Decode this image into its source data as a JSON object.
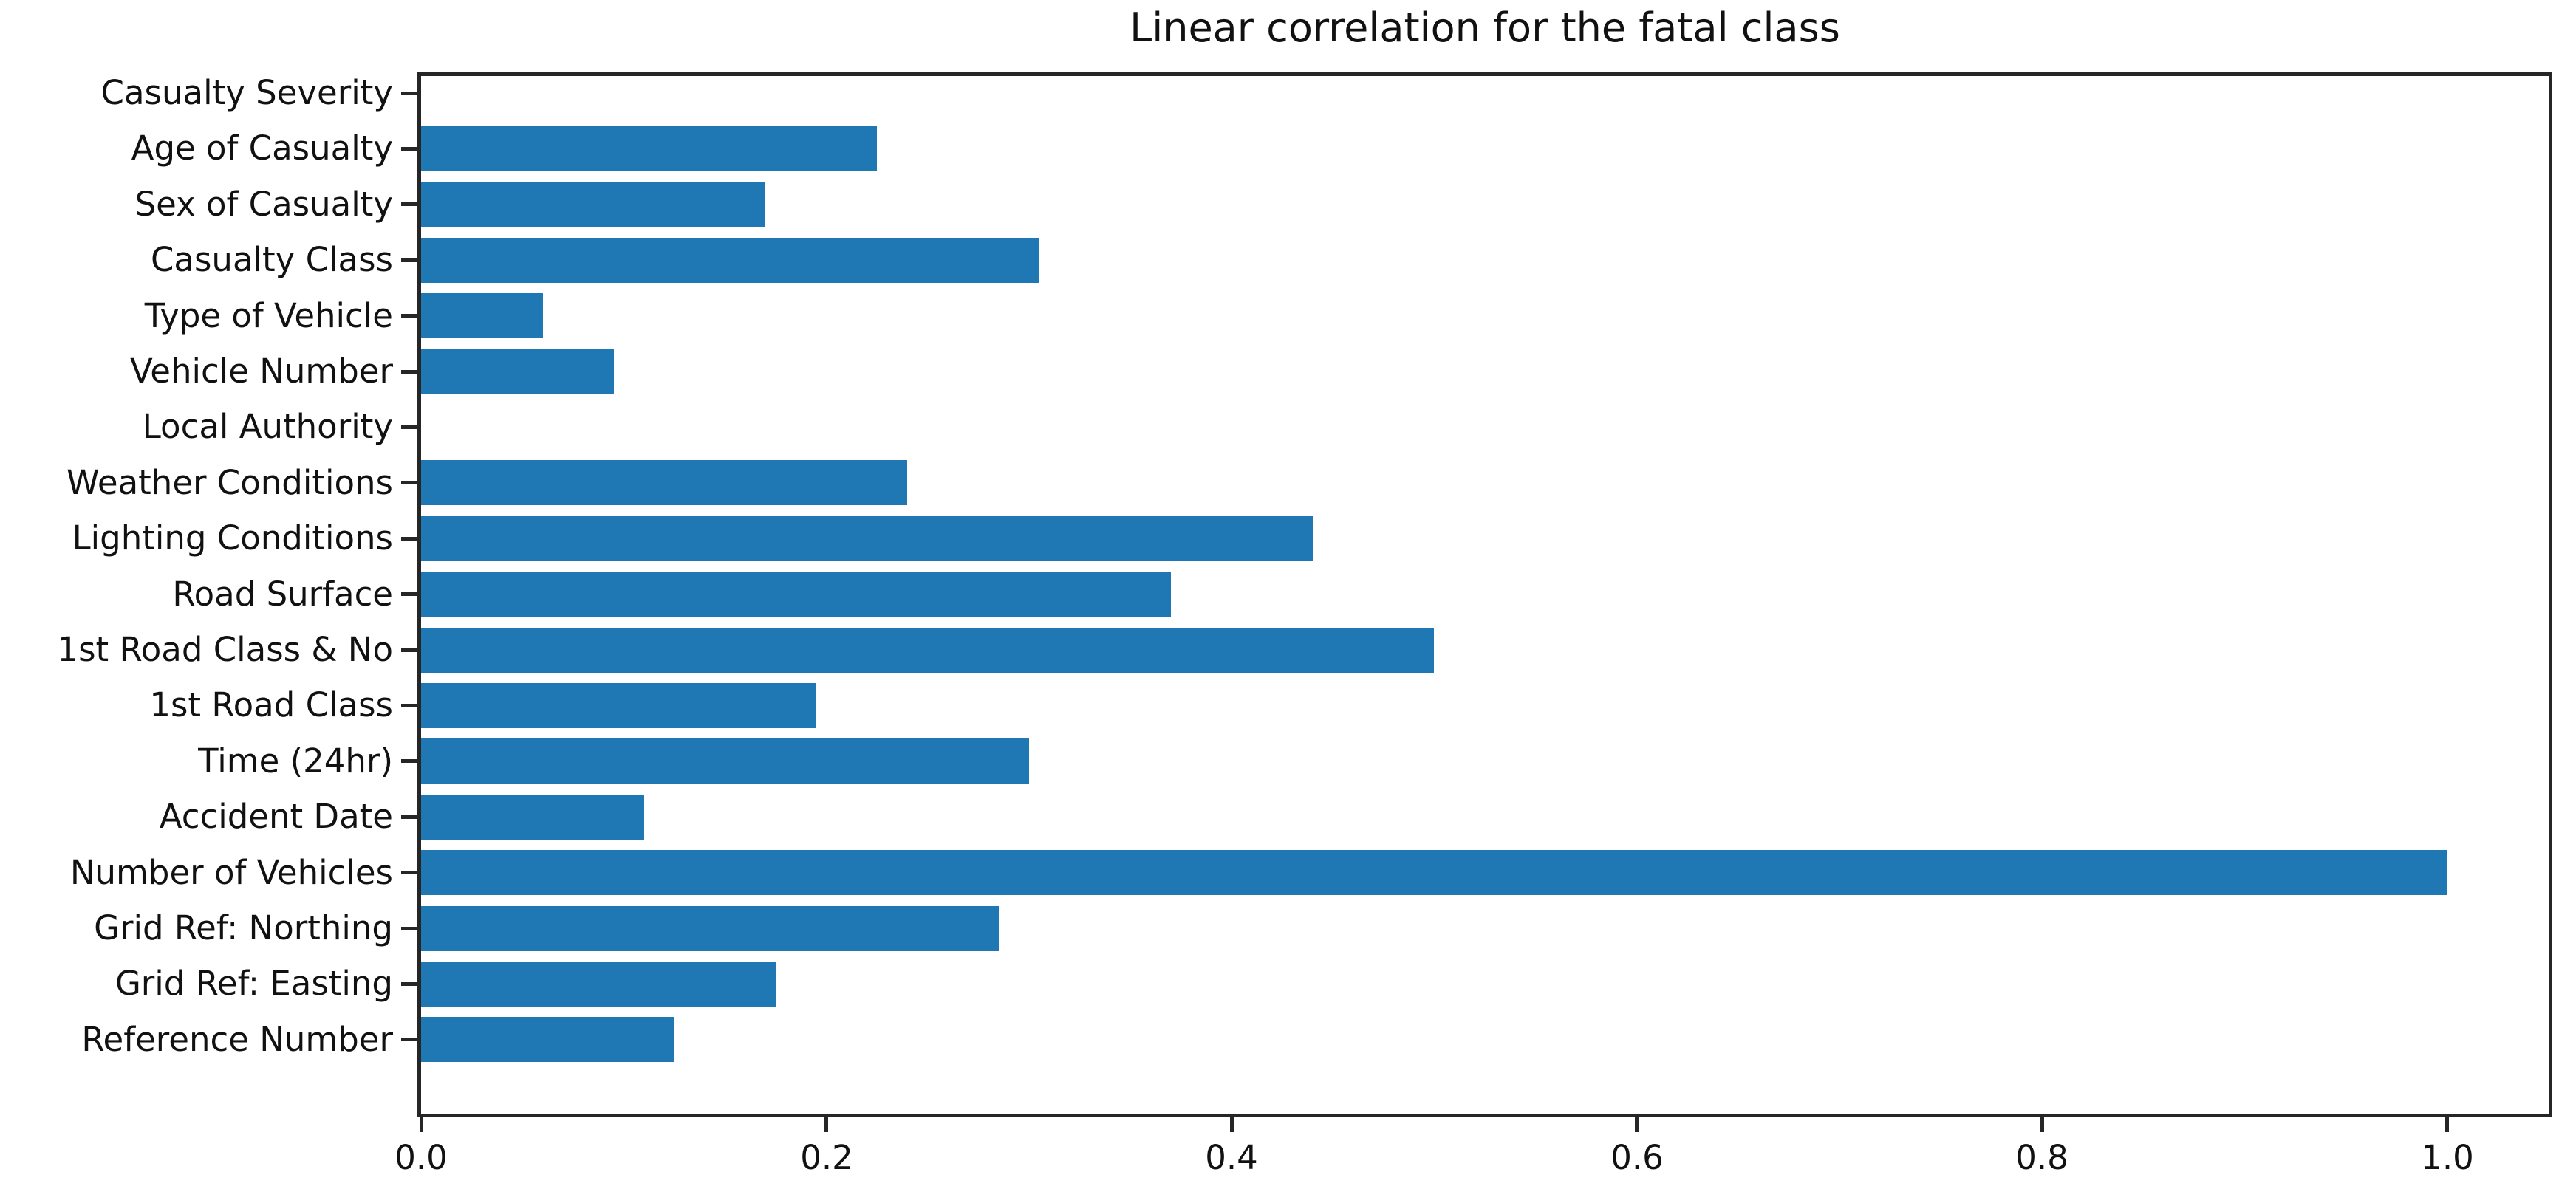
{
  "figure": {
    "background": "#ffffff"
  },
  "chart_data": {
    "type": "bar",
    "orientation": "horizontal",
    "title": "Linear correlation for the fatal class",
    "xlabel": "",
    "ylabel": "",
    "categories": [
      "Casualty Severity",
      "Age of Casualty",
      "Sex of Casualty",
      "Casualty Class",
      "Type of Vehicle",
      "Vehicle Number",
      "Local Authority",
      "Weather Conditions",
      "Lighting Conditions",
      "Road Surface",
      "1st Road Class & No",
      "1st Road Class",
      "Time (24hr)",
      "Accident Date",
      "Number of Vehicles",
      "Grid Ref: Northing",
      "Grid Ref: Easting",
      "Reference Number"
    ],
    "values": [
      0.0,
      0.225,
      0.17,
      0.305,
      0.06,
      0.095,
      0.0,
      0.24,
      0.44,
      0.37,
      0.5,
      0.195,
      0.3,
      0.11,
      1.0,
      0.285,
      0.175,
      0.125
    ],
    "xlim": [
      0,
      1.05
    ],
    "xtick_labels": [
      "0.0",
      "0.2",
      "0.4",
      "0.6",
      "0.8",
      "1.0"
    ],
    "xtick_values": [
      0.0,
      0.2,
      0.4,
      0.6,
      0.8,
      1.0
    ],
    "bar_color": "#1f77b4",
    "axis_color": "#262626",
    "text_color": "#111111",
    "grid": false,
    "legend": null
  }
}
